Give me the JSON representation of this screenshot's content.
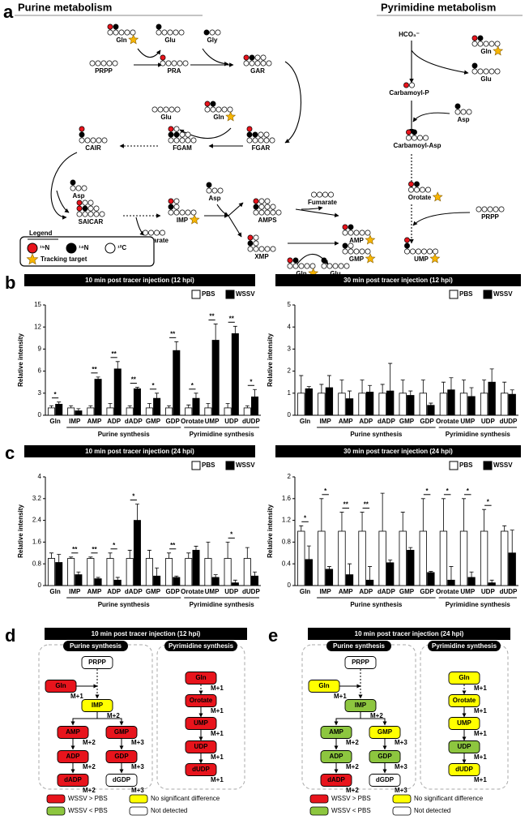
{
  "panel_letters": [
    "a",
    "b",
    "c",
    "d",
    "e"
  ],
  "panel_a": {
    "purine_title": "Purine metabolism",
    "pyrimidine_title": "Pyrimidine metabolism",
    "nodes": [
      "Gln",
      "Glu",
      "Gly",
      "PRPP",
      "PRA",
      "GAR",
      "Glu",
      "Gln",
      "FGAM",
      "FGAR",
      "CAIR",
      "Asp",
      "SAICAR",
      "Fumarate",
      "IMP",
      "Asp",
      "AMPS",
      "Fumarate",
      "AMP",
      "XMP",
      "Gln",
      "Glu",
      "GMP",
      "HCO₃⁻",
      "Gln",
      "Glu",
      "Carbamoyl-P",
      "Asp",
      "Carbamoyl-Asp",
      "Orotate",
      "PRPP",
      "UMP"
    ],
    "legend": {
      "title": "Legend",
      "items": [
        "¹⁵N",
        "¹⁴N",
        "¹²C"
      ],
      "target": "Tracking target"
    }
  },
  "chart_data": [
    {
      "type": "bar",
      "title": "10 min post tracer injection (12 hpi)",
      "y_label": "Relative intensity",
      "categories": [
        "Gln",
        "IMP",
        "AMP",
        "ADP",
        "dADP",
        "GMP",
        "GDP",
        "Orotate",
        "UMP",
        "UDP",
        "dUDP"
      ],
      "groups": [
        "Purine synthesis",
        "Pyrimidine synthesis"
      ],
      "series": [
        {
          "name": "PBS",
          "color": "#ffffff",
          "values": [
            1,
            1,
            1,
            1,
            1,
            1,
            1,
            1,
            1,
            1,
            1
          ],
          "errors": [
            0.3,
            0.3,
            0.3,
            0.6,
            0.3,
            0.6,
            0.3,
            0.4,
            0.6,
            0.6,
            0.3
          ]
        },
        {
          "name": "WSSV",
          "color": "#000000",
          "values": [
            1.5,
            0.6,
            4.9,
            6.3,
            3.6,
            2.3,
            8.8,
            2.3,
            10.2,
            11.1,
            2.5
          ],
          "errors": [
            0.3,
            0.3,
            0.3,
            1.0,
            0.2,
            0.7,
            1.2,
            0.7,
            2.2,
            1.0,
            1.0
          ]
        }
      ],
      "significance": [
        "*",
        null,
        "**",
        "**",
        "**",
        "*",
        "**",
        "*",
        "**",
        "**",
        "*"
      ],
      "ylim": [
        0,
        15
      ],
      "yticks": [
        0,
        3,
        6,
        9,
        12,
        15
      ]
    },
    {
      "type": "bar",
      "title": "30 min post tracer injection (12 hpi)",
      "y_label": "Relative intensity",
      "categories": [
        "Gln",
        "IMP",
        "AMP",
        "ADP",
        "dADP",
        "GMP",
        "GDP",
        "Orotate",
        "UMP",
        "UDP",
        "dUDP"
      ],
      "groups": [
        "Purine synthesis",
        "Pyrimidine synthesis"
      ],
      "series": [
        {
          "name": "PBS",
          "color": "#ffffff",
          "values": [
            1,
            1,
            1,
            1,
            1,
            1,
            1,
            1,
            1,
            1,
            1
          ],
          "errors": [
            0.8,
            0.4,
            0.6,
            0.6,
            0.4,
            0.6,
            0.6,
            0.5,
            0.6,
            0.6,
            0.5
          ]
        },
        {
          "name": "WSSV",
          "color": "#000000",
          "values": [
            1.2,
            1.25,
            0.75,
            1.05,
            1.1,
            0.9,
            0.45,
            1.15,
            0.85,
            1.5,
            0.95
          ],
          "errors": [
            0.1,
            0.55,
            0.35,
            0.3,
            1.25,
            0.2,
            0.1,
            0.55,
            0.4,
            0.6,
            0.2
          ]
        }
      ],
      "ylim": [
        0,
        5
      ],
      "yticks": [
        0,
        1,
        2,
        3,
        4,
        5
      ]
    },
    {
      "type": "bar",
      "title": "10 min post tracer injection (24 hpi)",
      "y_label": "Relative intensity",
      "categories": [
        "Gln",
        "IMP",
        "AMP",
        "ADP",
        "dADP",
        "GMP",
        "GDP",
        "Orotate",
        "UMP",
        "UDP",
        "dUDP"
      ],
      "groups": [
        "Purine synthesis",
        "Pyrimidine synthesis"
      ],
      "series": [
        {
          "name": "PBS",
          "color": "#ffffff",
          "values": [
            1,
            1,
            1,
            1,
            1,
            1,
            1,
            1,
            1,
            1,
            1
          ],
          "errors": [
            0.2,
            0.05,
            0.05,
            0.2,
            0.3,
            0.3,
            0.2,
            0.2,
            0.6,
            0.6,
            0.4
          ]
        },
        {
          "name": "WSSV",
          "color": "#000000",
          "values": [
            0.85,
            0.4,
            0.25,
            0.2,
            2.4,
            0.35,
            0.3,
            1.3,
            0.3,
            0.1,
            0.35
          ],
          "errors": [
            0.3,
            0.1,
            0.05,
            0.1,
            0.6,
            0.3,
            0.05,
            0.15,
            0.1,
            0.1,
            0.15
          ]
        }
      ],
      "significance": [
        null,
        "**",
        "**",
        "*",
        "*",
        null,
        "**",
        null,
        null,
        "*",
        null
      ],
      "ylim": [
        0,
        4
      ],
      "yticks": [
        0,
        0.8,
        1.6,
        2.4,
        3.2,
        4
      ]
    },
    {
      "type": "bar",
      "title": "30 min post tracer injection (24 hpi)",
      "y_label": "Relative intensity",
      "categories": [
        "Gln",
        "IMP",
        "AMP",
        "ADP",
        "dADP",
        "GMP",
        "GDP",
        "Orotate",
        "UMP",
        "UDP",
        "dUDP"
      ],
      "groups": [
        "Purine synthesis",
        "Pyrimidine synthesis"
      ],
      "series": [
        {
          "name": "PBS",
          "color": "#ffffff",
          "values": [
            1,
            1,
            1,
            1,
            1,
            1,
            1,
            1,
            1,
            1,
            1
          ],
          "errors": [
            0.1,
            0.6,
            0.35,
            0.35,
            0.7,
            0.35,
            0.6,
            0.6,
            0.6,
            0.4,
            0.1
          ]
        },
        {
          "name": "WSSV",
          "color": "#000000",
          "values": [
            0.48,
            0.3,
            0.2,
            0.1,
            0.42,
            0.65,
            0.24,
            0.1,
            0.15,
            0.05,
            0.6
          ],
          "errors": [
            0.25,
            0.05,
            0.2,
            0.25,
            0.05,
            0.05,
            0.02,
            0.25,
            0.1,
            0.05,
            0.42
          ]
        }
      ],
      "significance": [
        "*",
        "*",
        "**",
        "**",
        null,
        null,
        "*",
        "*",
        "*",
        "*",
        null
      ],
      "ylim": [
        0,
        2
      ],
      "yticks": [
        0,
        0.4,
        0.8,
        1.2,
        1.6,
        2
      ]
    }
  ],
  "panel_d": {
    "title": "10 min post tracer injection (12 hpi)",
    "purine_label": "Purine synthesis",
    "pyrimidine_label": "Pyrimidine synthesis",
    "purine_nodes": [
      {
        "label": "PRPP",
        "color": "#ffffff"
      },
      {
        "label": "Gln",
        "mass": "M+1",
        "color": "#e8141c"
      },
      {
        "label": "IMP",
        "mass": "M+2",
        "color": "#ffff00"
      },
      {
        "label": "AMP",
        "mass": "M+2",
        "color": "#e8141c"
      },
      {
        "label": "GMP",
        "mass": "M+3",
        "color": "#e8141c"
      },
      {
        "label": "ADP",
        "mass": "M+2",
        "color": "#e8141c"
      },
      {
        "label": "GDP",
        "mass": "M+3",
        "color": "#e8141c"
      },
      {
        "label": "dADP",
        "mass": "M+2",
        "color": "#e8141c"
      },
      {
        "label": "dGDP",
        "mass": "M+3",
        "color": "#ffffff"
      }
    ],
    "pyrimidine_nodes": [
      {
        "label": "Gln",
        "mass": "M+1",
        "color": "#e8141c"
      },
      {
        "label": "Orotate",
        "mass": "M+1",
        "color": "#e8141c"
      },
      {
        "label": "UMP",
        "mass": "M+1",
        "color": "#e8141c"
      },
      {
        "label": "UDP",
        "mass": "M+1",
        "color": "#e8141c"
      },
      {
        "label": "dUDP",
        "mass": "M+1",
        "color": "#e8141c"
      }
    ],
    "legend": [
      {
        "label": "WSSV > PBS",
        "color": "#e8141c"
      },
      {
        "label": "No significant difference",
        "color": "#ffff00"
      },
      {
        "label": "WSSV < PBS",
        "color": "#8dc63f"
      },
      {
        "label": "Not detected",
        "color": "#ffffff"
      }
    ]
  },
  "panel_e": {
    "title": "10 min post tracer injection (24 hpi)",
    "purine_label": "Purine synthesis",
    "pyrimidine_label": "Pyrimidine synthesis",
    "purine_nodes": [
      {
        "label": "PRPP",
        "color": "#ffffff"
      },
      {
        "label": "Gln",
        "mass": "M+1",
        "color": "#ffff00"
      },
      {
        "label": "IMP",
        "mass": "M+2",
        "color": "#8dc63f"
      },
      {
        "label": "AMP",
        "mass": "M+2",
        "color": "#8dc63f"
      },
      {
        "label": "GMP",
        "mass": "M+3",
        "color": "#ffff00"
      },
      {
        "label": "ADP",
        "mass": "M+2",
        "color": "#8dc63f"
      },
      {
        "label": "GDP",
        "mass": "M+3",
        "color": "#8dc63f"
      },
      {
        "label": "dADP",
        "mass": "M+2",
        "color": "#e8141c"
      },
      {
        "label": "dGDP",
        "mass": "M+3",
        "color": "#ffffff"
      }
    ],
    "pyrimidine_nodes": [
      {
        "label": "Gln",
        "mass": "M+1",
        "color": "#ffff00"
      },
      {
        "label": "Orotate",
        "mass": "M+1",
        "color": "#ffff00"
      },
      {
        "label": "UMP",
        "mass": "M+1",
        "color": "#ffff00"
      },
      {
        "label": "UDP",
        "mass": "M+1",
        "color": "#8dc63f"
      },
      {
        "label": "dUDP",
        "mass": "M+1",
        "color": "#ffff00"
      }
    ],
    "legend": [
      {
        "label": "WSSV > PBS",
        "color": "#e8141c"
      },
      {
        "label": "No significant difference",
        "color": "#ffff00"
      },
      {
        "label": "WSSV < PBS",
        "color": "#8dc63f"
      },
      {
        "label": "Not detected",
        "color": "#ffffff"
      }
    ]
  }
}
